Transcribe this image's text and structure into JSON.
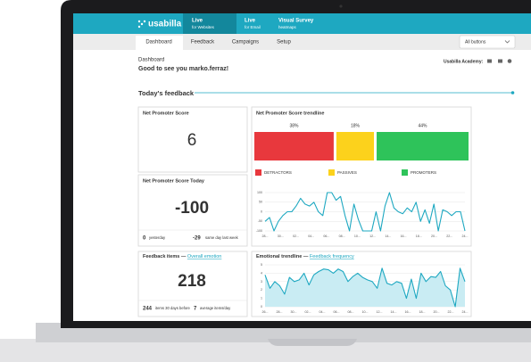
{
  "nav": {
    "logo": "usabilla",
    "tabs": [
      {
        "title": "Live",
        "subtitle": "for Websites"
      },
      {
        "title": "Live",
        "subtitle": "for Email"
      },
      {
        "title": "Visual Survey",
        "subtitle": "heatmaps"
      }
    ]
  },
  "subnav": {
    "tabs": [
      "Dashboard",
      "Feedback",
      "Campaigns",
      "Setup"
    ],
    "dropdown": "All buttons"
  },
  "header": {
    "breadcrumb": "Dashboard",
    "greeting": "Good to see you marko.ferraz!",
    "academy": "Usabilla Academy:"
  },
  "section_title": "Today's feedback",
  "cards": {
    "nps": {
      "title": "Net Promoter Score",
      "value": 6
    },
    "nps_today": {
      "title": "Net Promoter Score Today",
      "value": -100,
      "stats": [
        {
          "value": 0,
          "label": "yesterday"
        },
        {
          "value": -29,
          "label": "same day last week"
        }
      ]
    },
    "feedback": {
      "title": "Feedback items",
      "separator": "—",
      "link": "Overall emotion",
      "value": 218,
      "stats": [
        {
          "value": 244,
          "label": "items 30 days before"
        },
        {
          "value": 7,
          "label": "average items/day"
        }
      ]
    }
  },
  "nps_trend": {
    "title": "Net Promoter Score trendline",
    "segments": [
      {
        "name": "DETRACTORS",
        "value": 38,
        "value_label": "38%",
        "color": "#e8383d"
      },
      {
        "name": "PASSIVES",
        "value": 18,
        "value_label": "18%",
        "color": "#fcd21c"
      },
      {
        "name": "PROMOTERS",
        "value": 44,
        "value_label": "44%",
        "color": "#2ec35a"
      }
    ],
    "chart": {
      "type": "line",
      "color": "#1ea8c1",
      "ylim": [
        -100,
        100
      ],
      "yticks": [
        100,
        50,
        0,
        -50,
        -100
      ],
      "values": [
        -50,
        -30,
        -100,
        -50,
        -20,
        0,
        0,
        30,
        70,
        40,
        30,
        50,
        0,
        -20,
        100,
        100,
        60,
        80,
        -20,
        -100,
        40,
        -40,
        -100,
        -100,
        -100,
        0,
        -100,
        30,
        100,
        20,
        0,
        -10,
        20,
        0,
        50,
        -50,
        10,
        -60,
        40,
        -100,
        10,
        0,
        -20,
        0,
        0,
        -100
      ],
      "x_labels": [
        "28...",
        "30...",
        "02...",
        "04...",
        "06...",
        "08...",
        "10...",
        "12...",
        "14...",
        "16...",
        "18...",
        "20...",
        "22...",
        "24..."
      ]
    }
  },
  "emotional": {
    "title": "Emotional trendline",
    "separator": "—",
    "link": "Feedback frequency",
    "chart": {
      "type": "area",
      "color": "#1ea8c1",
      "fill": "#c9ecf3",
      "ylim": [
        0,
        5
      ],
      "yticks": [
        5,
        4,
        3,
        2,
        1,
        0
      ],
      "values": [
        3.8,
        2.2,
        3.0,
        2.5,
        1.5,
        3.5,
        3.0,
        3.2,
        4.0,
        2.6,
        3.8,
        4.2,
        4.5,
        4.4,
        4.0,
        4.5,
        4.2,
        3.0,
        3.6,
        4.0,
        3.5,
        3.2,
        3.0,
        2.2,
        4.6,
        2.8,
        2.6,
        3.0,
        2.8,
        1.0,
        3.3,
        1.0,
        4.0,
        3.0,
        3.6,
        3.5,
        4.2,
        2.5,
        2.0,
        0,
        4.6,
        3.0
      ],
      "x_labels": [
        "26...",
        "28...",
        "30...",
        "02...",
        "04...",
        "06...",
        "08...",
        "10...",
        "12...",
        "14...",
        "16...",
        "18...",
        "20...",
        "22...",
        "24..."
      ]
    }
  }
}
